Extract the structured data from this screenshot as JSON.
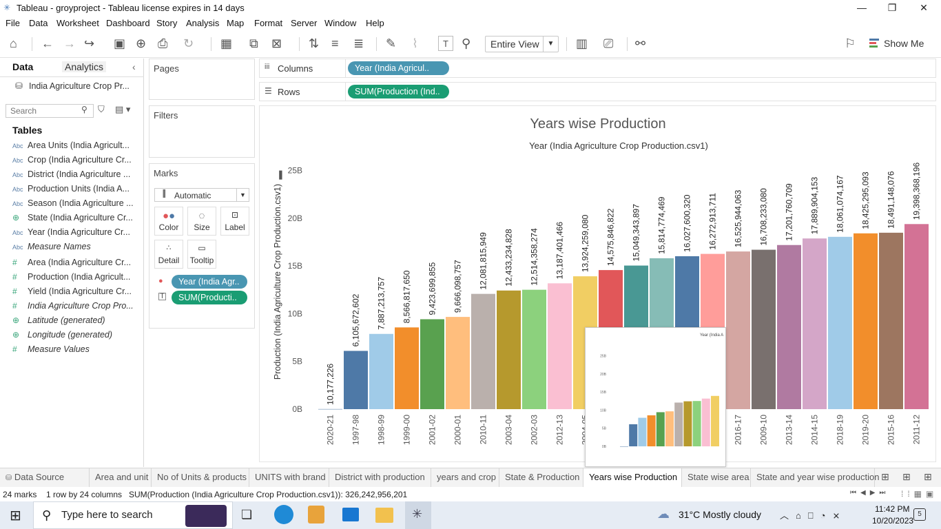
{
  "window": {
    "title": "Tableau - groyproject - Tableau license expires in 14 days"
  },
  "menu": [
    "File",
    "Data",
    "Worksheet",
    "Dashboard",
    "Story",
    "Analysis",
    "Map",
    "Format",
    "Server",
    "Window",
    "Help"
  ],
  "toolbar": {
    "fit": "Entire View",
    "show_me": "Show Me"
  },
  "datapane": {
    "tab_data": "Data",
    "tab_analytics": "Analytics",
    "source": "India Agriculture Crop Pr...",
    "search_placeholder": "Search",
    "tables_label": "Tables",
    "fields": [
      {
        "type": "Abc",
        "name": "Area Units (India Agricult..."
      },
      {
        "type": "Abc",
        "name": "Crop (India Agriculture Cr..."
      },
      {
        "type": "Abc",
        "name": "District (India Agriculture ..."
      },
      {
        "type": "Abc",
        "name": "Production Units (India A..."
      },
      {
        "type": "Abc",
        "name": "Season (India Agriculture ..."
      },
      {
        "type": "globe",
        "name": "State (India Agriculture Cr..."
      },
      {
        "type": "Abc",
        "name": "Year (India Agriculture Cr..."
      },
      {
        "type": "Abc",
        "name": "Measure Names"
      },
      {
        "type": "#",
        "name": "Area (India Agriculture Cr..."
      },
      {
        "type": "#",
        "name": "Production (India Agricult..."
      },
      {
        "type": "#",
        "name": "Yield (India Agriculture Cr..."
      },
      {
        "type": "#",
        "name": "India Agriculture Crop Pro..."
      },
      {
        "type": "globe",
        "name": "Latitude (generated)"
      },
      {
        "type": "globe",
        "name": "Longitude (generated)"
      },
      {
        "type": "#",
        "name": "Measure Values"
      }
    ]
  },
  "cards": {
    "pages": "Pages",
    "filters": "Filters",
    "marks": "Marks",
    "mark_type": "Automatic",
    "mark_buttons": [
      "Color",
      "Size",
      "Label",
      "Detail",
      "Tooltip"
    ],
    "mark_pills": [
      "Year (India Agr..",
      "SUM(Producti.."
    ]
  },
  "shelves": {
    "columns_label": "Columns",
    "rows_label": "Rows",
    "columns_pill": "Year (India Agricul..",
    "rows_pill": "SUM(Production (Ind.."
  },
  "chart_data": {
    "type": "bar",
    "title": "Years wise Production",
    "xlabel": "Year (India Agriculture Crop Production.csv1)",
    "ylabel": "Production (India Agriculture Crop Production.csv1)",
    "ylim": [
      0,
      27000000000
    ],
    "yticks": [
      "0B",
      "5B",
      "10B",
      "15B",
      "20B",
      "25B"
    ],
    "categories": [
      "2020-21",
      "1997-98",
      "1998-99",
      "1999-00",
      "2001-02",
      "2000-01",
      "2010-11",
      "2003-04",
      "2002-03",
      "2012-13",
      "2004-05",
      "2005-06",
      "2006-07",
      "2007-08",
      "2008-09",
      "2011-12b",
      "2016-17",
      "2009-10",
      "2013-14",
      "2014-15",
      "2018-19",
      "2019-20",
      "2015-16",
      "2011-12"
    ],
    "tick_labels": [
      "2020-21",
      "1997-98",
      "1998-99",
      "1999-00",
      "2001-02",
      "2000-01",
      "2010-11",
      "2003-04",
      "2002-03",
      "2012-13",
      "2004-05",
      "",
      "",
      "",
      "",
      "",
      "2016-17",
      "2009-10",
      "2013-14",
      "2014-15",
      "2018-19",
      "2019-20",
      "2015-16",
      "2011-12"
    ],
    "values": [
      10177226,
      6105672602,
      7887213757,
      8566817650,
      9423699855,
      9666098757,
      12081815949,
      12433234828,
      12514358274,
      13187401466,
      13924259080,
      14575846822,
      15049343897,
      15814774469,
      16027600320,
      16272913711,
      16525944063,
      16708233080,
      17201760709,
      17889904153,
      18061074167,
      18425295093,
      18491148076,
      19398368196
    ],
    "labels": [
      "10,177,226",
      "6,105,672,602",
      "7,887,213,757",
      "8,566,817,650",
      "9,423,699,855",
      "9,666,098,757",
      "12,081,815,949",
      "12,433,234,828",
      "12,514,358,274",
      "13,187,401,466",
      "13,924,259,080",
      "14,575,846,822",
      "15,049,343,897",
      "15,814,774,469",
      "16,027,600,320",
      "16,272,913,711",
      "16,525,944,063",
      "16,708,233,080",
      "17,201,760,709",
      "17,889,904,153",
      "18,061,074,167",
      "18,425,295,093",
      "18,491,148,076",
      "19,398,368,196"
    ],
    "colors": [
      "#4e79a7",
      "#4e79a7",
      "#a0cbe8",
      "#f28e2b",
      "#59a14f",
      "#ffbe7d",
      "#bab0ac",
      "#b6992d",
      "#8cd17d",
      "#fabfd2",
      "#f1ce63",
      "#e15759",
      "#499894",
      "#86bcb6",
      "#4e79a7",
      "#ff9d9a",
      "#d4a6a2",
      "#79706e",
      "#b07aa1",
      "#d4a6c8",
      "#a0cbe8",
      "#f28e2b",
      "#9d7660",
      "#d37295"
    ],
    "grid": false
  },
  "tooltip_preview": {
    "header": "Year (India A"
  },
  "sheet_tabs": [
    "Data Source",
    "Area and unit",
    "No of Units & products",
    "UNITS with brand",
    "District with production",
    "years and crop",
    "State & Production",
    "Years wise Production",
    "State wise area",
    "State and year wise production"
  ],
  "status": {
    "marks": "24 marks",
    "dims": "1 row by 24 columns",
    "sum": "SUM(Production (India Agriculture Crop Production.csv1)): 326,242,956,201"
  },
  "taskbar": {
    "search": "Type here to search",
    "weather": "31°C  Mostly cloudy",
    "time": "11:42 PM",
    "date": "10/20/2023",
    "notif": "5"
  }
}
